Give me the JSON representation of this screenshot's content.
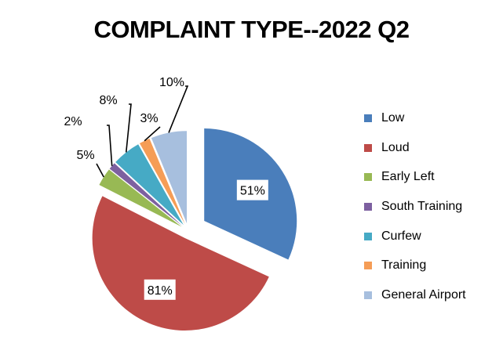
{
  "chart_data": {
    "type": "pie",
    "title": "COMPLAINT TYPE--2022 Q2",
    "slices": [
      {
        "name": "Low",
        "value": 51,
        "label": "51%",
        "color": "#4A7EBB"
      },
      {
        "name": "Loud",
        "value": 81,
        "label": "81%",
        "color": "#BE4B48"
      },
      {
        "name": "Early Left",
        "value": 5,
        "label": "5%",
        "color": "#98B954"
      },
      {
        "name": "South Training",
        "value": 2,
        "label": "2%",
        "color": "#7D60A0"
      },
      {
        "name": "Curfew",
        "value": 8,
        "label": "8%",
        "color": "#46AAC5"
      },
      {
        "name": "Training",
        "value": 3,
        "label": "3%",
        "color": "#F59D56"
      },
      {
        "name": "General Airport",
        "value": 10,
        "label": "10%",
        "color": "#A7BFDE"
      }
    ],
    "legend_position": "right",
    "start_angle": "12 o'clock, clockwise"
  }
}
